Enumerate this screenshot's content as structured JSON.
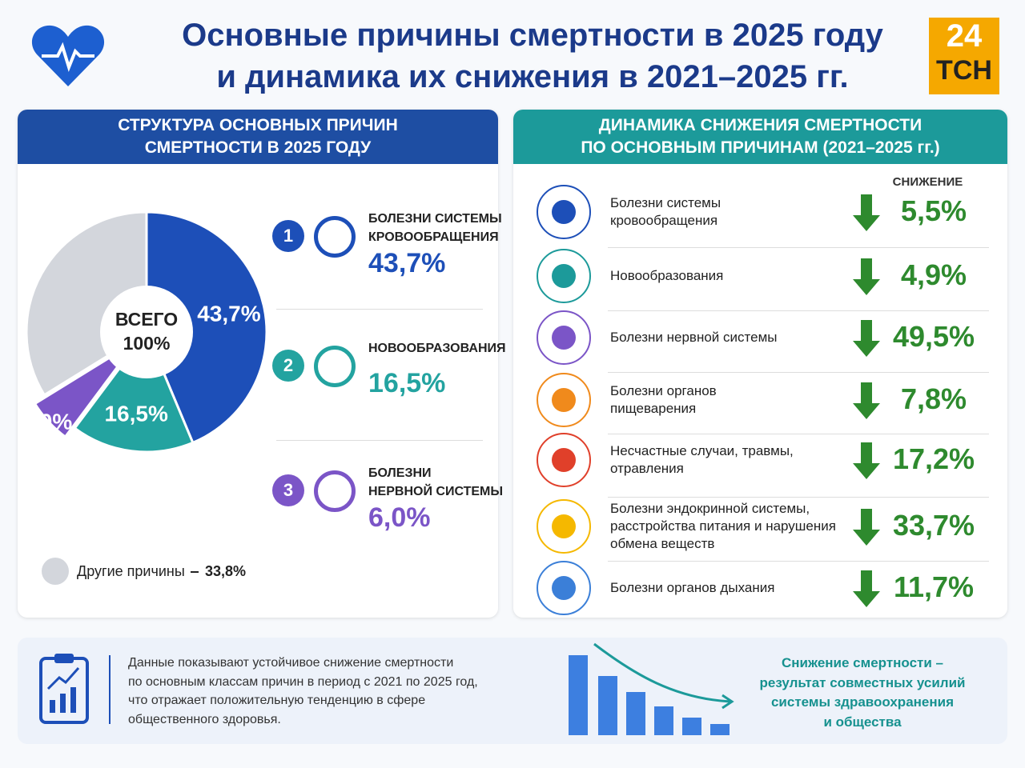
{
  "header": {
    "title": "Основные причины смертности в 2025 году\nи динамика их снижения в 2021–2025 гг.",
    "logo_top": "24",
    "logo_bottom": "ТСН"
  },
  "chart_data": {
    "type": "pie",
    "title": "СТРУКТУРА ОСНОВНЫХ ПРИЧИН\nСМЕРТНОСТИ В 2025 ГОДУ",
    "center_label": "ВСЕГО\n100%",
    "categories": [
      "БОЛЕЗНИ СИСТЕМЫ\nКРОВООБРАЩЕНИЯ",
      "НОВООБРАЗОВАНИЯ",
      "БОЛЕЗНИ\nНЕРВНОЙ СИСТЕМЫ",
      "Другие причины"
    ],
    "values": [
      43.7,
      16.5,
      6.0,
      33.8
    ],
    "value_labels": [
      "43,7%",
      "16,5%",
      "6,0%",
      "33,8%"
    ],
    "colors": [
      "#1d4fb8",
      "#23a3a0",
      "#7b55c7",
      "#d3d6dc"
    ],
    "ranks": [
      "1",
      "2",
      "3"
    ]
  },
  "dynamics": {
    "title": "ДИНАМИКА СНИЖЕНИЯ СМЕРТНОСТИ\nПО ОСНОВНЫМ ПРИЧИНАМ (2021–2025 гг.)",
    "column_header": "СНИЖЕНИЕ",
    "items": [
      {
        "name": "Болезни системы\nкровообращения",
        "reduction": "5,5%"
      },
      {
        "name": "Новообразования",
        "reduction": "4,9%"
      },
      {
        "name": "Болезни нервной системы",
        "reduction": "49,5%"
      },
      {
        "name": "Болезни органов\nпищеварения",
        "reduction": "7,8%"
      },
      {
        "name": "Несчастные случаи, травмы,\nотравления",
        "reduction": "17,2%"
      },
      {
        "name": "Болезни эндокринной системы,\nрасстройства питания и нарушения\nобмена веществ",
        "reduction": "33,7%"
      },
      {
        "name": "Болезни органов дыхания",
        "reduction": "11,7%"
      }
    ]
  },
  "footer": {
    "note": "Данные показывают устойчивое снижение смертности\nпо основным классам причин в период с 2021 по 2025 год,\nчто отражает положительную тенденцию в сфере\nобщественного здоровья.",
    "conclusion": "Снижение смертности –\nрезультат совместных усилий\nсистемы здравоохранения\nи общества"
  }
}
